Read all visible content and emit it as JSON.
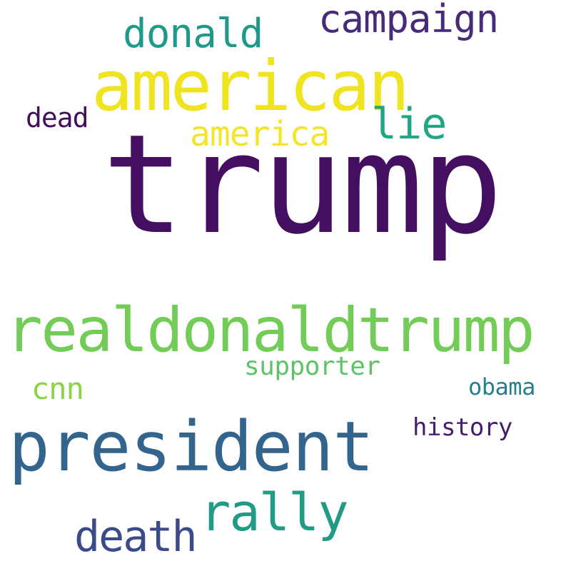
{
  "words": [
    {
      "text": "trump",
      "color": "#440f60"
    },
    {
      "text": "american",
      "color": "#f0e320"
    },
    {
      "text": "realdonaldtrump",
      "color": "#73cc57"
    },
    {
      "text": "president",
      "color": "#33648d"
    },
    {
      "text": "campaign",
      "color": "#472a79"
    },
    {
      "text": "donald",
      "color": "#1f9a8a"
    },
    {
      "text": "rally",
      "color": "#209c86"
    },
    {
      "text": "death",
      "color": "#3b4a8b"
    },
    {
      "text": "america",
      "color": "#f5e52a"
    },
    {
      "text": "lie",
      "color": "#21a584"
    },
    {
      "text": "dead",
      "color": "#440f5a"
    },
    {
      "text": "supporter",
      "color": "#5fc36a"
    },
    {
      "text": "cnn",
      "color": "#8bd347"
    },
    {
      "text": "obama",
      "color": "#277f8e"
    },
    {
      "text": "history",
      "color": "#451c6c"
    }
  ]
}
